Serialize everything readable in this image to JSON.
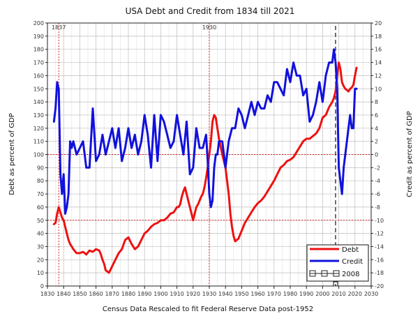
{
  "chart_data": {
    "type": "line",
    "title": "USA Debt and Credit from 1834 till 2021",
    "xlabel": "Census Data Rescaled to fit Federal Reserve Data post-1952",
    "ylabel_left": "Debt as percent of GDP",
    "ylabel_right": "Credit as percent of GDP",
    "xlim": [
      1830,
      2030
    ],
    "ylim_left": [
      0,
      200
    ],
    "ylim_right": [
      -20,
      20
    ],
    "x_ticks": [
      1830,
      1840,
      1850,
      1860,
      1870,
      1880,
      1890,
      1900,
      1910,
      1920,
      1930,
      1940,
      1950,
      1960,
      1970,
      1980,
      1990,
      2000,
      2010,
      2020,
      2030
    ],
    "y_left_ticks": [
      0,
      10,
      20,
      30,
      40,
      50,
      60,
      70,
      80,
      90,
      100,
      110,
      120,
      130,
      140,
      150,
      160,
      170,
      180,
      190,
      200
    ],
    "y_right_ticks": [
      -20,
      -18,
      -16,
      -14,
      -12,
      -10,
      -8,
      -6,
      -4,
      -2,
      0,
      2,
      4,
      6,
      8,
      10,
      12,
      14,
      16,
      18,
      20
    ],
    "grid": true,
    "legend_position": "bottom-right",
    "annotations": [
      {
        "label": "1837",
        "x": 1837
      },
      {
        "label": "1930",
        "x": 1930
      }
    ],
    "reference_lines": {
      "left_y": [
        50,
        100
      ],
      "x_dashed_black": 2008
    },
    "series": [
      {
        "name": "Debt",
        "axis": "left",
        "color": "#ee1111",
        "x": [
          1834,
          1835,
          1836,
          1837,
          1838,
          1839,
          1840,
          1841,
          1842,
          1843,
          1844,
          1845,
          1846,
          1848,
          1850,
          1852,
          1854,
          1856,
          1858,
          1860,
          1862,
          1863,
          1864,
          1865,
          1866,
          1868,
          1870,
          1872,
          1874,
          1876,
          1878,
          1880,
          1882,
          1884,
          1886,
          1888,
          1890,
          1892,
          1894,
          1896,
          1898,
          1900,
          1902,
          1904,
          1906,
          1908,
          1910,
          1911,
          1912,
          1913,
          1914,
          1915,
          1916,
          1917,
          1918,
          1919,
          1920,
          1921,
          1922,
          1923,
          1924,
          1925,
          1926,
          1927,
          1928,
          1929,
          1930,
          1931,
          1932,
          1933,
          1934,
          1935,
          1936,
          1938,
          1940,
          1941,
          1942,
          1943,
          1944,
          1945,
          1946,
          1948,
          1950,
          1952,
          1954,
          1956,
          1958,
          1960,
          1962,
          1964,
          1966,
          1968,
          1970,
          1972,
          1974,
          1976,
          1978,
          1980,
          1982,
          1984,
          1986,
          1988,
          1990,
          1992,
          1994,
          1996,
          1998,
          2000,
          2002,
          2004,
          2006,
          2007,
          2008,
          2009,
          2010,
          2011,
          2012,
          2013,
          2014,
          2015,
          2016,
          2017,
          2018,
          2019,
          2020,
          2021
        ],
        "values": [
          47,
          48,
          55,
          60,
          56,
          52,
          50,
          45,
          40,
          35,
          32,
          30,
          28,
          25,
          25,
          26,
          24,
          27,
          26,
          28,
          27,
          24,
          20,
          17,
          12,
          10,
          15,
          20,
          25,
          28,
          35,
          37,
          32,
          28,
          30,
          35,
          40,
          42,
          45,
          47,
          48,
          50,
          50,
          52,
          55,
          56,
          60,
          60,
          62,
          68,
          72,
          75,
          70,
          65,
          60,
          55,
          50,
          55,
          60,
          62,
          65,
          68,
          70,
          75,
          82,
          90,
          100,
          110,
          125,
          130,
          128,
          120,
          112,
          100,
          90,
          80,
          70,
          55,
          45,
          38,
          34,
          36,
          42,
          48,
          52,
          56,
          60,
          63,
          65,
          68,
          72,
          76,
          80,
          85,
          90,
          92,
          95,
          96,
          98,
          102,
          106,
          110,
          112,
          112,
          114,
          116,
          120,
          128,
          130,
          136,
          140,
          143,
          148,
          160,
          170,
          165,
          155,
          152,
          150,
          149,
          148,
          150,
          151,
          153,
          160,
          166
        ]
      },
      {
        "name": "Credit",
        "axis": "right",
        "color": "#1111dd",
        "x": [
          1834,
          1835,
          1836,
          1837,
          1838,
          1839,
          1840,
          1841,
          1842,
          1843,
          1844,
          1845,
          1846,
          1848,
          1850,
          1852,
          1854,
          1856,
          1858,
          1860,
          1862,
          1864,
          1866,
          1868,
          1870,
          1872,
          1874,
          1876,
          1878,
          1880,
          1882,
          1884,
          1886,
          1888,
          1890,
          1892,
          1894,
          1896,
          1898,
          1900,
          1902,
          1904,
          1906,
          1908,
          1910,
          1912,
          1914,
          1916,
          1918,
          1920,
          1922,
          1924,
          1926,
          1928,
          1929,
          1930,
          1931,
          1932,
          1933,
          1934,
          1935,
          1936,
          1938,
          1940,
          1942,
          1944,
          1946,
          1948,
          1950,
          1952,
          1954,
          1956,
          1958,
          1960,
          1962,
          1964,
          1966,
          1968,
          1970,
          1972,
          1974,
          1976,
          1978,
          1980,
          1982,
          1984,
          1986,
          1988,
          1990,
          1992,
          1994,
          1996,
          1998,
          2000,
          2002,
          2004,
          2006,
          2007,
          2008,
          2009,
          2010,
          2011,
          2012,
          2013,
          2014,
          2015,
          2016,
          2017,
          2018,
          2019,
          2020,
          2021
        ],
        "values": [
          5,
          7,
          11,
          10,
          -3,
          -6,
          -3,
          -9,
          -8,
          -6,
          2,
          1,
          2,
          0,
          1,
          2,
          -2,
          -2,
          7,
          -1,
          0,
          3,
          0,
          2,
          4,
          1,
          4,
          -1,
          1,
          4,
          1,
          3,
          0,
          2,
          6,
          3,
          -2,
          6,
          -1,
          6,
          5,
          3,
          1,
          2,
          6,
          3,
          0,
          5,
          -3,
          -2,
          4,
          1,
          1,
          3,
          -1,
          -6,
          -8,
          -7,
          -2,
          0,
          0,
          2,
          2,
          -2,
          2,
          4,
          4,
          7,
          6,
          4,
          6,
          8,
          6,
          8,
          7,
          7,
          9,
          8,
          11,
          11,
          10,
          9,
          13,
          11,
          14,
          12,
          12,
          9,
          10,
          5,
          6,
          8,
          11,
          8,
          12,
          14,
          14,
          16,
          14,
          10,
          -2,
          -4,
          -6,
          -2,
          0,
          2,
          4,
          6,
          4,
          4,
          10,
          10
        ]
      }
    ],
    "legend": [
      {
        "label": "Debt"
      },
      {
        "label": "Credit"
      },
      {
        "label": "2008"
      }
    ]
  }
}
